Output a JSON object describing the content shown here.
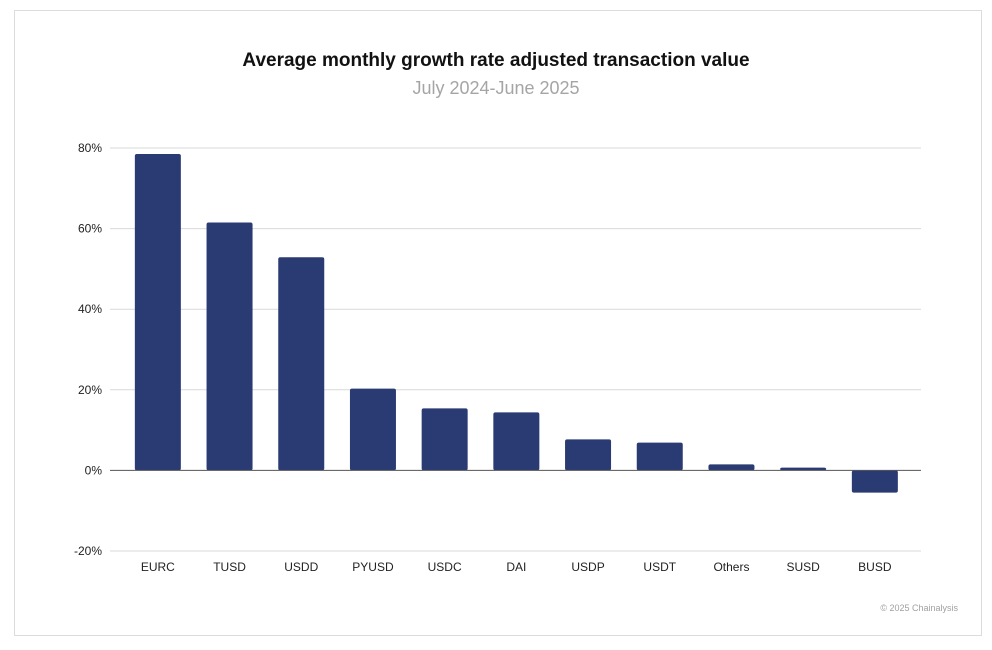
{
  "chart_data": {
    "type": "bar",
    "title": "Average monthly growth rate adjusted transaction value",
    "subtitle": "July 2024-June 2025",
    "categories": [
      "EURC",
      "TUSD",
      "USDD",
      "PYUSD",
      "USDC",
      "DAI",
      "USDP",
      "USDT",
      "Others",
      "SUSD",
      "BUSD"
    ],
    "values": [
      78.5,
      61.5,
      52.9,
      20.3,
      15.4,
      14.4,
      7.7,
      6.9,
      1.5,
      0.7,
      -5.5
    ],
    "unit": "%",
    "ylim": [
      -20,
      80
    ],
    "yticks": [
      -20,
      0,
      20,
      40,
      60,
      80
    ],
    "ytick_labels": [
      "-20%",
      "0%",
      "20%",
      "40%",
      "60%",
      "80%"
    ],
    "xlabel": "",
    "ylabel": "",
    "grid": true,
    "bar_color": "#2a3a72",
    "credit": "© 2025 Chainalysis"
  }
}
